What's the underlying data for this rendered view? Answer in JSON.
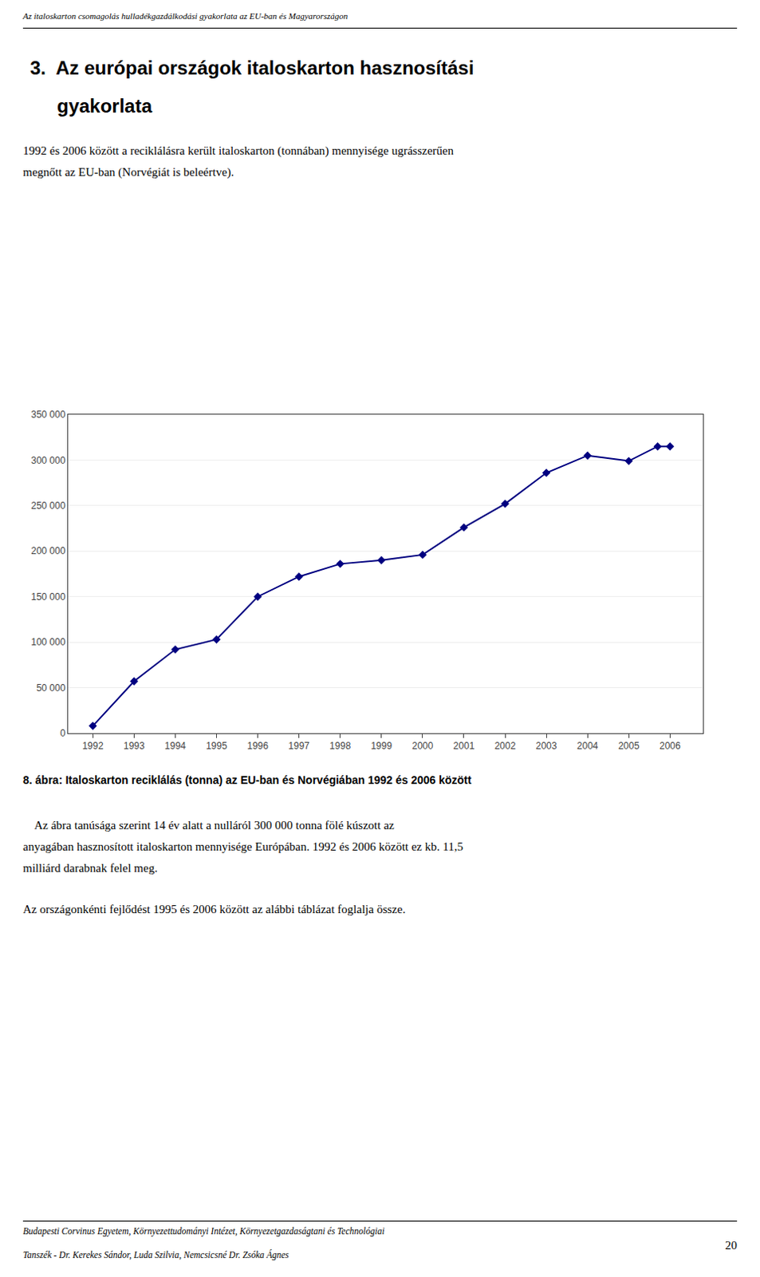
{
  "header": "Az italoskarton csomagolás hulladékgazdálkodási gyakorlata az EU-ban és Magyarországon",
  "heading": [
    "3.  Az európai országok italoskarton hasznosítási",
    "gyakorlata"
  ],
  "body_text1": "1992 és 2006 között a reciklálásra került italoskarton (tonnában) mennyisége ugrásszerűen\nmegnőtt az EU-ban (Norvégiát is beleértve).",
  "caption": "8. ábra: Italoskarton reciklálás (tonna) az EU-ban és Norvégiában 1992 és 2006 között",
  "body_text2": "    Az ábra tanúsága szerint 14 év alatt a nulláról 300 000 tonna fölé kúszott az\nanyagában hasznosított italoskarton mennyisége Európában. 1992 és 2006 között ez kb. 11,5\nmilliárd darabnak felel meg.",
  "body_text3": "Az országonkénti fejlődést 1995 és 2006 között az alábbi táblázat foglalja össze.",
  "footer": [
    "Budapesti Corvinus Egyetem, Környezettudományi Intézet, Környezetgazdaságtani és Technológiai",
    "Tanszék - Dr. Kerekes Sándor, Luda Szilvia, Nemcsicsné Dr. Zsóka Ágnes"
  ],
  "page_number": "20",
  "chart_data": {
    "type": "line",
    "x": [
      1992,
      1993,
      1994,
      1995,
      1996,
      1997,
      1998,
      1999,
      2000,
      2001,
      2002,
      2003,
      2004,
      2005,
      2005.7,
      2006
    ],
    "values": [
      8000,
      57000,
      92000,
      103000,
      150000,
      172000,
      186000,
      190000,
      196000,
      226000,
      252000,
      286000,
      305000,
      299000,
      315000,
      315000
    ],
    "color": "#000080",
    "marker": "diamond",
    "line_style": "solid",
    "xlim": [
      1991.4,
      2006.8
    ],
    "xticks": [
      1992,
      1993,
      1994,
      1995,
      1996,
      1997,
      1998,
      1999,
      2000,
      2001,
      2002,
      2003,
      2004,
      2005,
      2006
    ],
    "ylim": [
      0,
      350000
    ],
    "yticks": [
      0,
      {
        "value": 50000,
        "label": "50 000"
      },
      {
        "value": 100000,
        "label": "100 000"
      },
      {
        "value": 150000,
        "label": "150 000"
      },
      {
        "value": 200000,
        "label": "200 000"
      },
      {
        "value": 250000,
        "label": "250 000"
      },
      {
        "value": 300000,
        "label": "300 000"
      },
      {
        "value": 350000,
        "label": "350 000"
      }
    ],
    "grid": "y"
  }
}
